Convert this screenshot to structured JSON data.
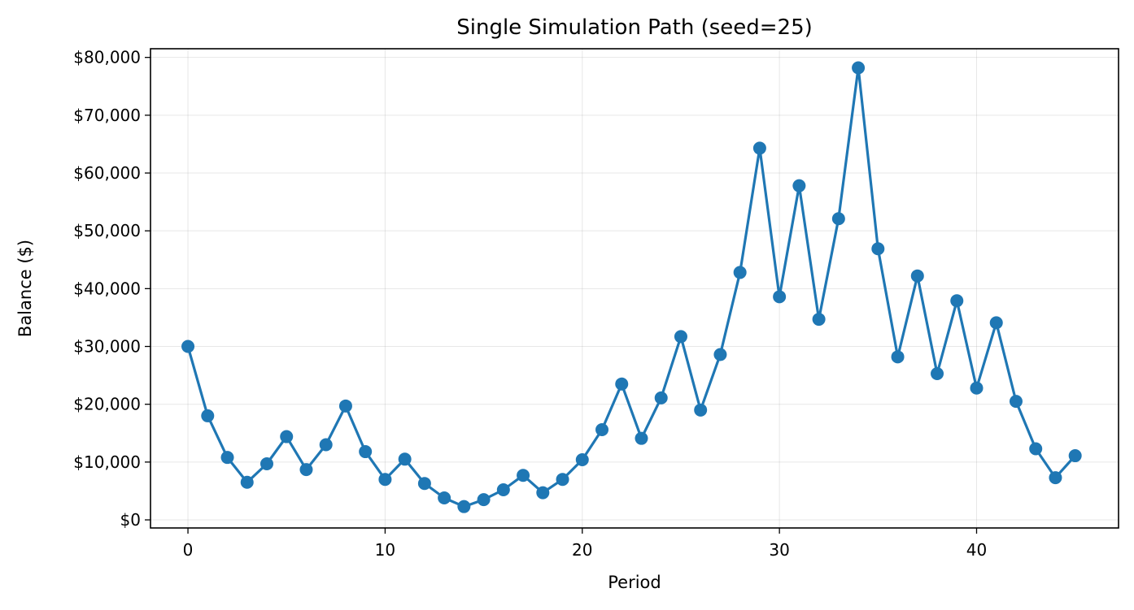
{
  "chart_data": {
    "type": "line",
    "title": "Single Simulation Path (seed=25)",
    "xlabel": "Period",
    "ylabel": "Balance ($)",
    "xlim": [
      -1.9,
      47.2
    ],
    "ylim": [
      -1400,
      81500
    ],
    "xticks": [
      0,
      10,
      20,
      30,
      40
    ],
    "yticks": [
      0,
      10000,
      20000,
      30000,
      40000,
      50000,
      60000,
      70000,
      80000
    ],
    "ytick_labels": [
      "$0",
      "$10,000",
      "$20,000",
      "$30,000",
      "$40,000",
      "$50,000",
      "$60,000",
      "$70,000",
      "$80,000"
    ],
    "grid": true,
    "markers": true,
    "color": "#1f77b4",
    "x": [
      0,
      1,
      2,
      3,
      4,
      5,
      6,
      7,
      8,
      9,
      10,
      11,
      12,
      13,
      14,
      15,
      16,
      17,
      18,
      19,
      20,
      21,
      22,
      23,
      24,
      25,
      26,
      27,
      28,
      29,
      30,
      31,
      32,
      33,
      34,
      35,
      36,
      37,
      38,
      39,
      40,
      41,
      42,
      43,
      44,
      45
    ],
    "y": [
      30000,
      18000,
      10800,
      6500,
      9700,
      14400,
      8700,
      13000,
      19700,
      11800,
      7000,
      10500,
      6300,
      3800,
      2300,
      3500,
      5200,
      7700,
      4700,
      7000,
      10400,
      15600,
      23500,
      14100,
      21100,
      31700,
      19000,
      28600,
      42800,
      64300,
      38600,
      57800,
      34700,
      52100,
      78200,
      46900,
      28200,
      42200,
      25300,
      37900,
      22800,
      34100,
      20500,
      12300,
      7300,
      11100
    ]
  }
}
